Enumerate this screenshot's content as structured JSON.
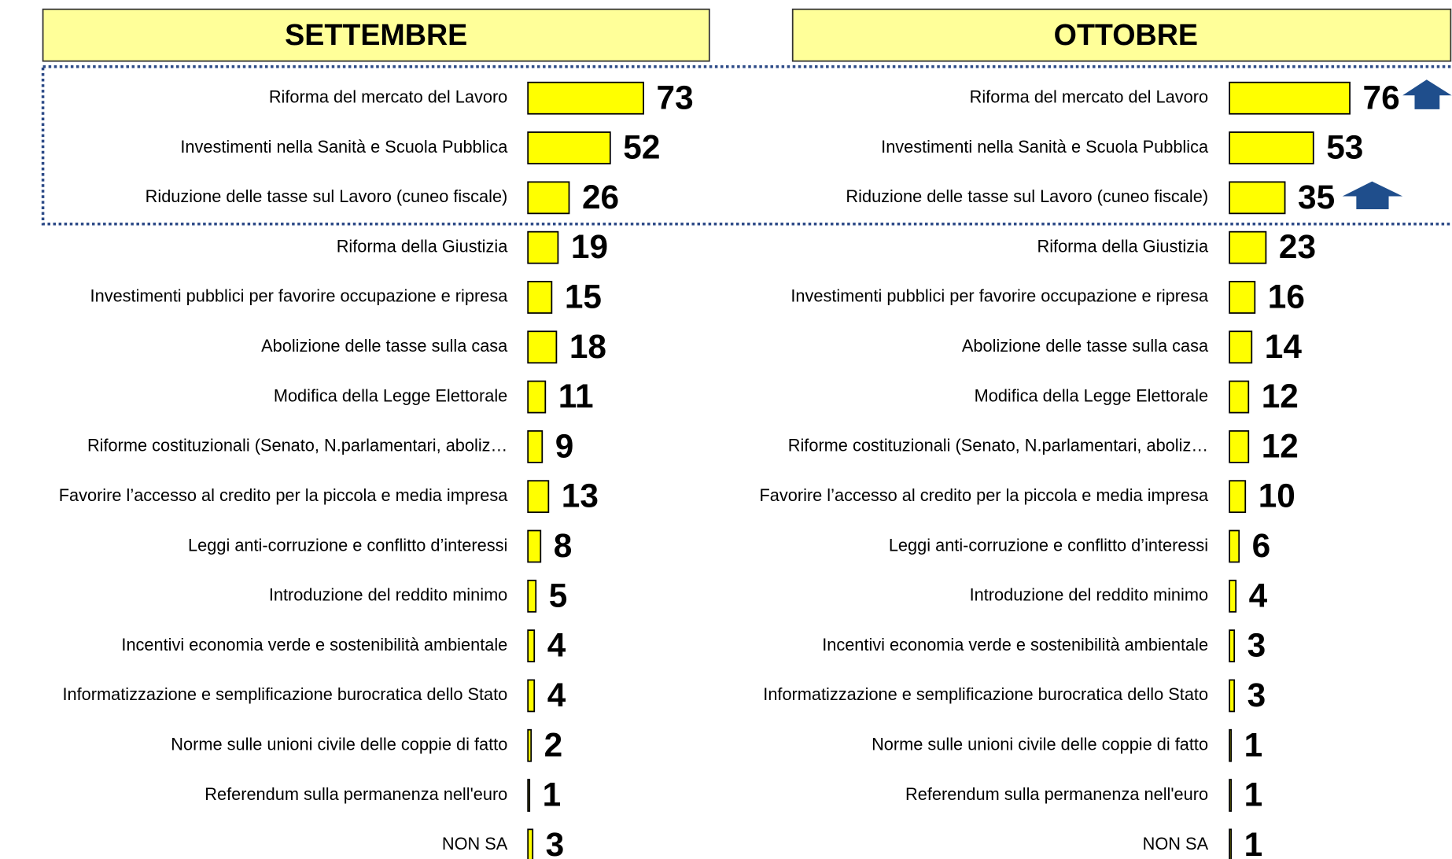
{
  "chart_data": [
    {
      "type": "bar",
      "title": "SETTEMBRE",
      "color": "#ffff00",
      "categories": [
        "Riforma del mercato del Lavoro",
        "Investimenti nella Sanità e Scuola Pubblica",
        "Riduzione delle tasse sul Lavoro (cuneo fiscale)",
        "Riforma della Giustizia",
        "Investimenti pubblici per favorire occupazione e ripresa",
        "Abolizione delle tasse sulla casa",
        "Modifica della Legge Elettorale",
        "Riforme costituzionali (Senato, N.parlamentari, aboliz…",
        "Favorire l’accesso al credito per la piccola e media impresa",
        "Leggi anti-corruzione e conflitto d’interessi",
        "Introduzione del reddito minimo",
        "Incentivi economia verde e sostenibilità ambientale",
        "Informatizzazione e semplificazione burocratica dello Stato",
        "Norme sulle unioni civile delle coppie di fatto",
        "Referendum sulla permanenza nell'euro",
        "NON SA"
      ],
      "values": [
        73,
        52,
        26,
        19,
        15,
        18,
        11,
        9,
        13,
        8,
        5,
        4,
        4,
        2,
        1,
        3
      ]
    },
    {
      "type": "bar",
      "title": "OTTOBRE",
      "color": "#ffff00",
      "categories": [
        "Riforma del mercato del Lavoro",
        "Investimenti nella Sanità e Scuola Pubblica",
        "Riduzione delle tasse sul Lavoro (cuneo fiscale)",
        "Riforma della Giustizia",
        "Investimenti pubblici per favorire occupazione e ripresa",
        "Abolizione delle tasse sulla casa",
        "Modifica della Legge Elettorale",
        "Riforme costituzionali (Senato, N.parlamentari, aboliz…",
        "Favorire l’accesso al credito per la piccola e media impresa",
        "Leggi anti-corruzione e conflitto d’interessi",
        "Introduzione del reddito minimo",
        "Incentivi economia verde e sostenibilità ambientale",
        "Informatizzazione e semplificazione burocratica dello Stato",
        "Norme sulle unioni civile delle coppie di fatto",
        "Referendum sulla permanenza nell'euro",
        "NON SA"
      ],
      "values": [
        76,
        53,
        35,
        23,
        16,
        14,
        12,
        12,
        10,
        6,
        4,
        3,
        3,
        1,
        1,
        1
      ]
    }
  ]
}
